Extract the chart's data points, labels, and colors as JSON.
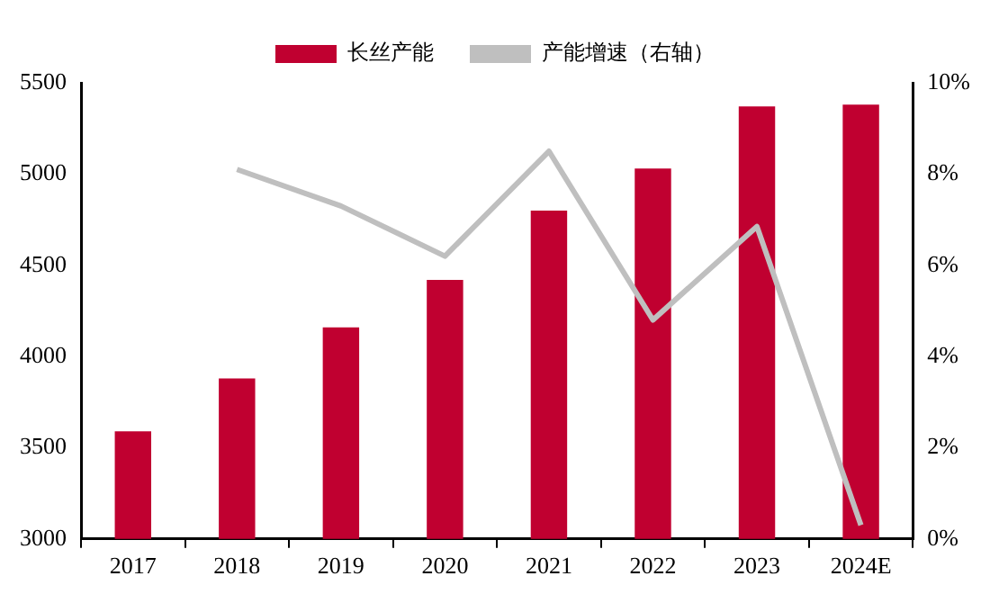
{
  "chart_data": {
    "type": "bar",
    "categories": [
      "2017",
      "2018",
      "2019",
      "2020",
      "2021",
      "2022",
      "2023",
      "2024E"
    ],
    "series": [
      {
        "name": "长丝产能",
        "color": "#c00030",
        "values": [
          3590,
          3880,
          4160,
          4420,
          4800,
          5030,
          5370,
          5380
        ]
      },
      {
        "name": "产能增速（右轴）",
        "type": "line",
        "axis": "y2",
        "color": "#bfbfbf",
        "values": [
          null,
          8.1,
          7.3,
          6.2,
          8.5,
          4.8,
          6.85,
          0.3
        ]
      }
    ],
    "ylim": [
      3000,
      5500
    ],
    "yticks": [
      3000,
      3500,
      4000,
      4500,
      5000,
      5500
    ],
    "y2lim": [
      0,
      10
    ],
    "y2ticks": [
      {
        "value": 0,
        "label": "0%"
      },
      {
        "value": 2,
        "label": "2%"
      },
      {
        "value": 4,
        "label": "4%"
      },
      {
        "value": 6,
        "label": "6%"
      },
      {
        "value": 8,
        "label": "8%"
      },
      {
        "value": 10,
        "label": "10%"
      }
    ],
    "legend": "top",
    "grid": false,
    "marker": "none",
    "line_style": "solid"
  }
}
